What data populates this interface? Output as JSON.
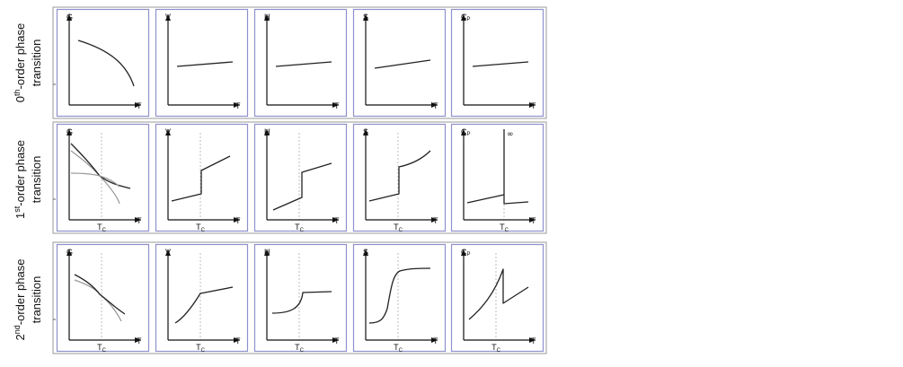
{
  "rows": [
    {
      "ordinal": "0",
      "suffix": "th",
      "label_rest": "-order phase",
      "label_line2": "transition",
      "panels": [
        {
          "ylabel": "G",
          "xlabel": "T"
        },
        {
          "ylabel": "V",
          "xlabel": "T"
        },
        {
          "ylabel": "H",
          "xlabel": "T"
        },
        {
          "ylabel": "S",
          "xlabel": "T"
        },
        {
          "ylabel": "C",
          "ylabel_sub": "P",
          "xlabel": "T"
        }
      ]
    },
    {
      "ordinal": "1",
      "suffix": "st",
      "label_rest": "-order phase",
      "label_line2": "transition",
      "panels": [
        {
          "ylabel": "G",
          "xlabel": "T",
          "tick": "T",
          "tick_sub": "C"
        },
        {
          "ylabel": "V",
          "xlabel": "T",
          "tick": "T",
          "tick_sub": "C"
        },
        {
          "ylabel": "H",
          "xlabel": "T",
          "tick": "T",
          "tick_sub": "C"
        },
        {
          "ylabel": "S",
          "xlabel": "T",
          "tick": "T",
          "tick_sub": "C"
        },
        {
          "ylabel": "C",
          "ylabel_sub": "P",
          "xlabel": "T",
          "tick": "T",
          "tick_sub": "C",
          "annotation": "∞"
        }
      ]
    },
    {
      "ordinal": "2",
      "suffix": "nd",
      "label_rest": "-order phase",
      "label_line2": "transition",
      "panels": [
        {
          "ylabel": "G",
          "xlabel": "T",
          "tick": "T",
          "tick_sub": "C"
        },
        {
          "ylabel": "V",
          "xlabel": "T",
          "tick": "T",
          "tick_sub": "C"
        },
        {
          "ylabel": "H",
          "xlabel": "T",
          "tick": "T",
          "tick_sub": "C"
        },
        {
          "ylabel": "S",
          "xlabel": "T",
          "tick": "T",
          "tick_sub": "C"
        },
        {
          "ylabel": "C",
          "ylabel_sub": "P",
          "xlabel": "T",
          "tick": "T",
          "tick_sub": "C"
        }
      ]
    }
  ],
  "colors": {
    "panel_border": "#8f91cc",
    "row_border": "#9a9a9a",
    "curve": "#222222",
    "curve_alt": "#9a9a9a",
    "axis": "#111111",
    "dashed": "#bdbdbd"
  }
}
